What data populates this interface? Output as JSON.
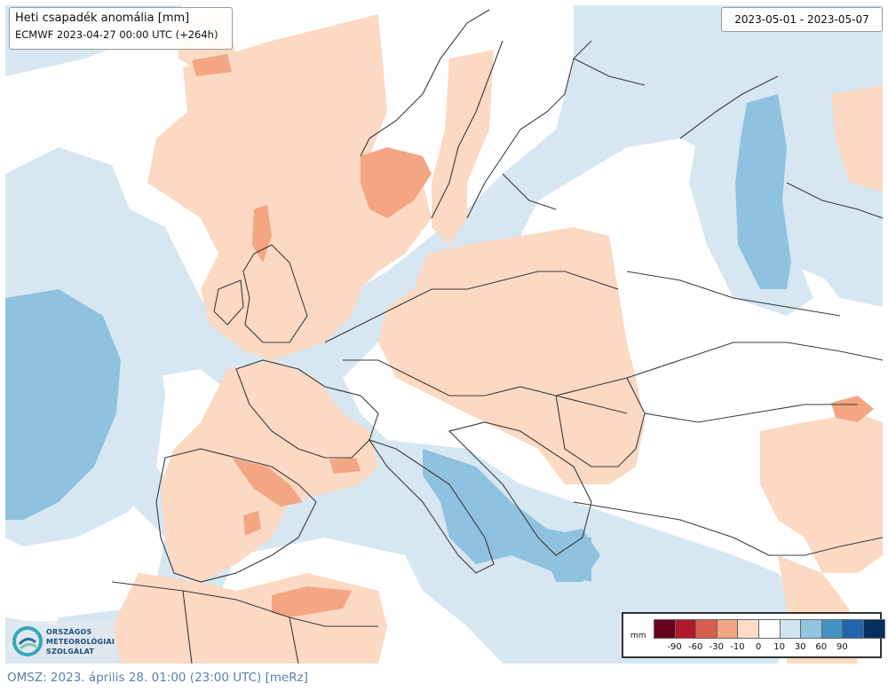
{
  "title": {
    "line1": "Heti csapadék anomália [mm]",
    "line2": "ECMWF 2023-04-27 00:00 UTC (+264h)"
  },
  "date_range": "2023-05-01 - 2023-05-07",
  "legend": {
    "unit": "mm",
    "colors": [
      "#67001f",
      "#b2182b",
      "#d6604d",
      "#f4a582",
      "#fddbc7",
      "#ffffff",
      "#d1e5f0",
      "#92c5de",
      "#4393c3",
      "#2166ac",
      "#053061"
    ],
    "ticks": [
      "-90",
      "-60",
      "-30",
      "-10",
      "0",
      "10",
      "30",
      "60",
      "90"
    ]
  },
  "logo": {
    "line1": "ORSZÁGOS",
    "line2": "METEOROLÓGIAI",
    "line3": "SZOLGÁLAT"
  },
  "footer": "OMSZ: 2023. április 28. 01:00 (23:00  UTC)  [meRz]",
  "map_colors": {
    "dry_light": "#fcd9c3",
    "dry_medium": "#f4a582",
    "neutral": "#ffffff",
    "wet_light": "#d6e7f2",
    "wet_medium": "#8fc2de",
    "wet_strong": "#6baed6"
  }
}
